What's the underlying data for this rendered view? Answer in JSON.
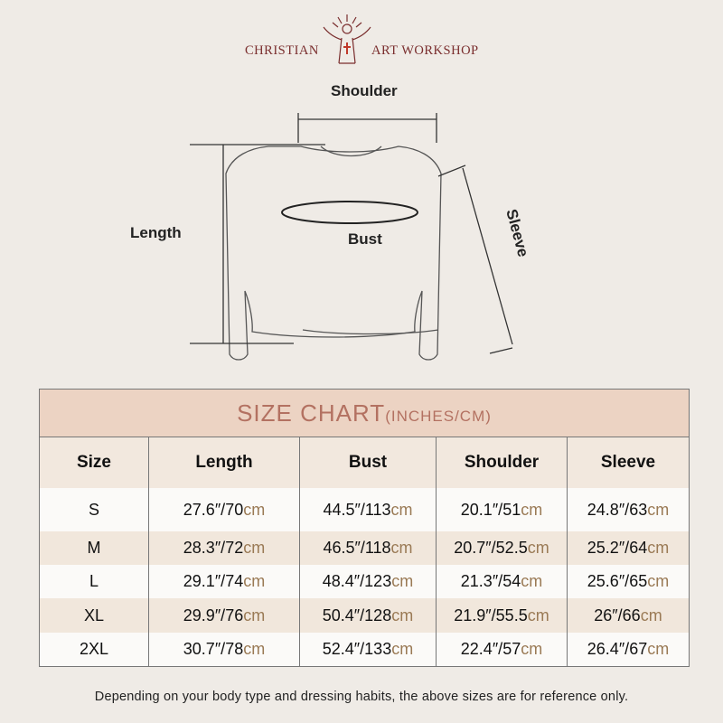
{
  "brand": {
    "left": "CHRISTIAN",
    "right": "ART WORKSHOP"
  },
  "diagram": {
    "shoulder": "Shoulder",
    "length": "Length",
    "bust": "Bust",
    "sleeve": "Sleeve"
  },
  "table": {
    "title": "SIZE CHART",
    "units": "(INCHES/CM)",
    "headers": [
      "Size",
      "Length",
      "Bust",
      "Shoulder",
      "Sleeve"
    ],
    "rows": [
      {
        "size": "S",
        "cells": [
          [
            "27.6″/70",
            "cm"
          ],
          [
            "44.5″/113",
            "cm"
          ],
          [
            "20.1″/51",
            "cm"
          ],
          [
            "24.8″/63",
            "cm"
          ]
        ]
      },
      {
        "size": "M",
        "cells": [
          [
            "28.3″/72",
            "cm"
          ],
          [
            "46.5″/118",
            "cm"
          ],
          [
            "20.7″/52.5",
            "cm"
          ],
          [
            "25.2″/64",
            "cm"
          ]
        ]
      },
      {
        "size": "L",
        "cells": [
          [
            "29.1″/74",
            "cm"
          ],
          [
            "48.4″/123",
            "cm"
          ],
          [
            "21.3″/54",
            "cm"
          ],
          [
            "25.6″/65",
            "cm"
          ]
        ]
      },
      {
        "size": "XL",
        "cells": [
          [
            "29.9″/76",
            "cm"
          ],
          [
            "50.4″/128",
            "cm"
          ],
          [
            "21.9″/55.5",
            "cm"
          ],
          [
            "26″/66",
            "cm"
          ]
        ]
      },
      {
        "size": "2XL",
        "cells": [
          [
            "30.7″/78",
            "cm"
          ],
          [
            "52.4″/133",
            "cm"
          ],
          [
            "22.4″/57",
            "cm"
          ],
          [
            "26.4″/67",
            "cm"
          ]
        ]
      }
    ]
  },
  "footnote": "Depending on your body type and dressing habits, the above sizes are for reference only.",
  "colors": {
    "brand": "#7a2e2e",
    "title": "#b37161",
    "title_bg": "#ecd3c3",
    "unit": "#9a7a55"
  }
}
